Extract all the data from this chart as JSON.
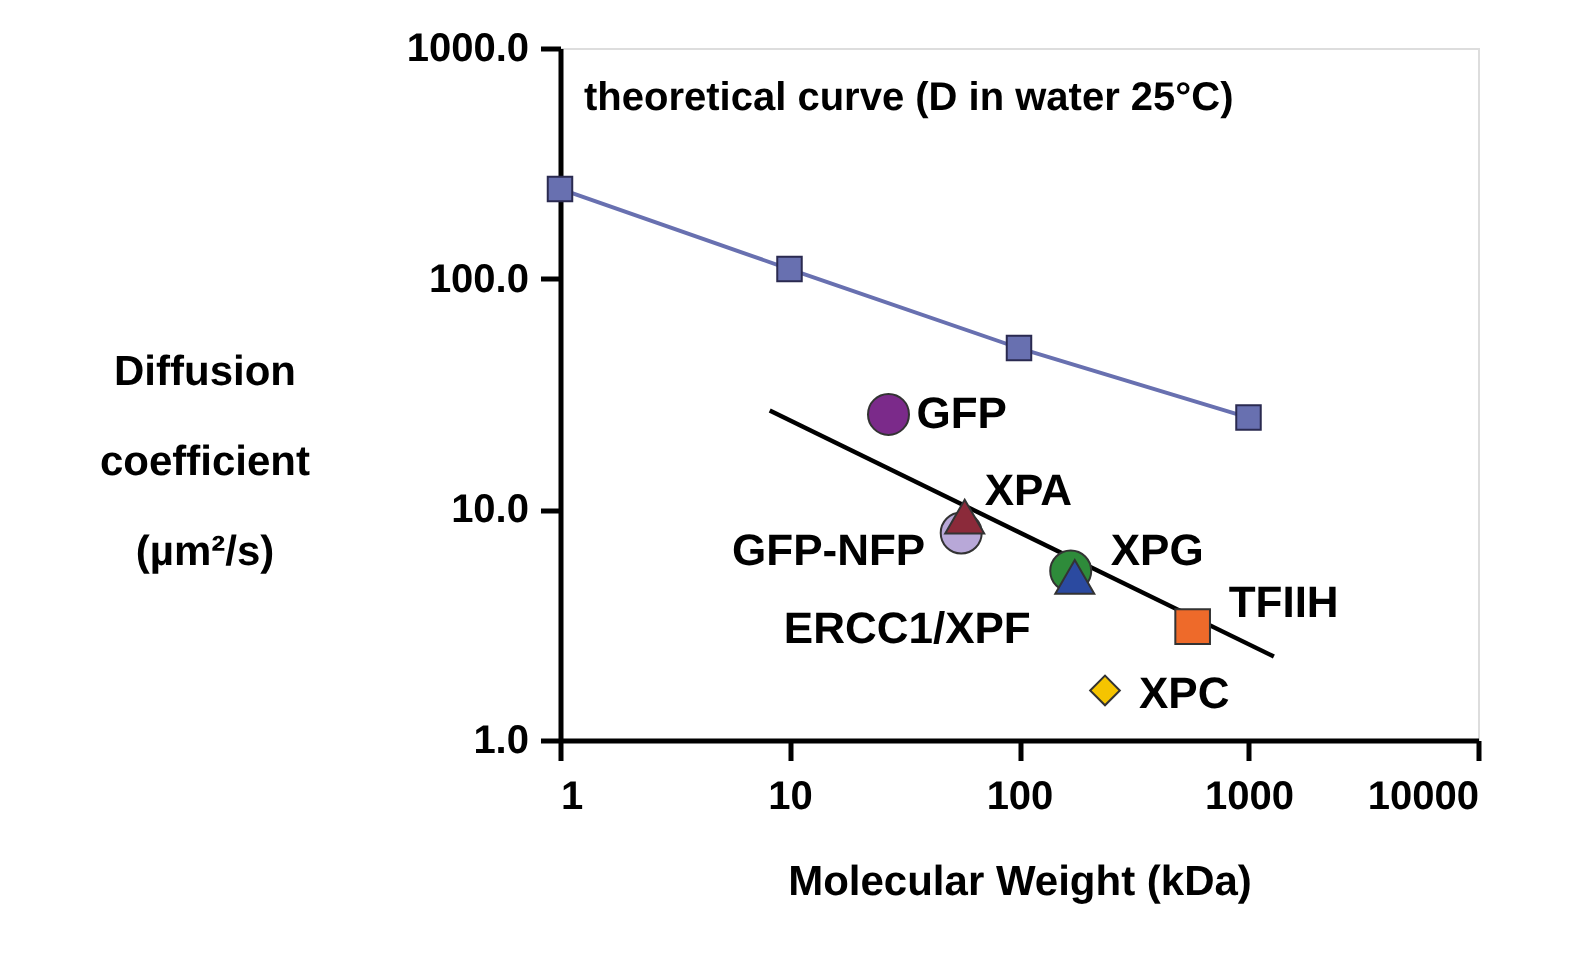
{
  "chart_data": {
    "type": "scatter",
    "xlabel": "Molecular Weight (kDa)",
    "ylabel": "Diffusion coefficient (µm²/s)",
    "log": "xy",
    "xlim": [
      1,
      10000
    ],
    "xticks": [
      1,
      10,
      100,
      1000,
      10000
    ],
    "ylim": [
      1,
      1000
    ],
    "yticks": [
      {
        "value": 1,
        "label": "1.0"
      },
      {
        "value": 10,
        "label": "10.0"
      },
      {
        "value": 100,
        "label": "100.0"
      },
      {
        "value": 1000,
        "label": "1000.0"
      }
    ],
    "grid": false,
    "legend": false,
    "series": [
      {
        "name": "theoretical curve (D in water 25°C)",
        "type": "line",
        "marker": "square",
        "color": "#6870b0",
        "x": [
          1,
          10,
          100,
          1000
        ],
        "values": [
          245,
          110,
          50,
          25
        ]
      },
      {
        "type": "line",
        "marker": "none",
        "color": "#000000",
        "x": [
          8.2,
          1290
        ],
        "values": [
          26.8,
          2.3
        ]
      },
      {
        "name": "GFP",
        "marker": "circle",
        "color": "#7b2a8a",
        "x": [
          27
        ],
        "values": [
          25.8
        ]
      },
      {
        "name": "GFP-NFP",
        "marker": "circle",
        "color": "#b8a8d8",
        "x": [
          56
        ],
        "values": [
          7.9
        ]
      },
      {
        "name": "XPA",
        "marker": "triangle",
        "color": "#8b2a3a",
        "x": [
          58
        ],
        "values": [
          9.3
        ]
      },
      {
        "name": "XPG",
        "marker": "circle",
        "color": "#2e8b3a",
        "x": [
          168
        ],
        "values": [
          5.4
        ]
      },
      {
        "name": "ERCC1/XPF",
        "marker": "triangle",
        "color": "#2b4aa0",
        "x": [
          175
        ],
        "values": [
          5.1
        ]
      },
      {
        "name": "TFIIH",
        "marker": "square",
        "color": "#ee6a2a",
        "x": [
          571
        ],
        "values": [
          3.1
        ]
      },
      {
        "name": "XPC",
        "marker": "diamond",
        "color": "#f5c400",
        "x": [
          237
        ],
        "values": [
          1.64
        ]
      }
    ]
  }
}
